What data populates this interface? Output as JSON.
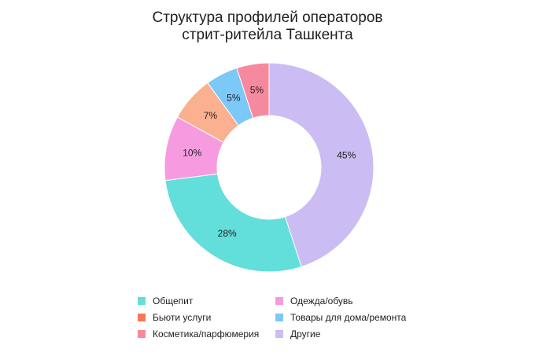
{
  "chart_data": {
    "type": "pie",
    "title_lines": [
      "Структура профилей операторов",
      "стрит-ритейла Ташкента"
    ],
    "categories": [
      "Общепит",
      "Одежда/обувь",
      "Бьюти услуги",
      "Товары для дома/ремонта",
      "Косметика/парфюмерия",
      "Другие"
    ],
    "slices": [
      {
        "name": "Другие",
        "value": 45,
        "label": "45%",
        "color": "#cbbcf3"
      },
      {
        "name": "Общепит",
        "value": 28,
        "label": "28%",
        "color": "#62dedb"
      },
      {
        "name": "Одежда/обувь",
        "value": 10,
        "label": "10%",
        "color": "#f79be0"
      },
      {
        "name": "Бьюти услуги",
        "value": 7,
        "label": "7%",
        "color": "#fbb08f"
      },
      {
        "name": "Товары для дома/ремонта",
        "value": 5,
        "label": "5%",
        "color": "#7cc8f7"
      },
      {
        "name": "Косметика/парфюмерия",
        "value": 5,
        "label": "5%",
        "color": "#f7899f"
      }
    ],
    "legend": {
      "placement": "bottom",
      "items": [
        {
          "label": "Общепит",
          "color": "#62dedb"
        },
        {
          "label": "Одежда/обувь",
          "color": "#f79be0"
        },
        {
          "label": "Бьюти услуги",
          "color": "#f47a52"
        },
        {
          "label": "Товары для дома/ремонта",
          "color": "#7cc8f7"
        },
        {
          "label": "Косметика/парфюмерия",
          "color": "#f7899f"
        },
        {
          "label": "Другие",
          "color": "#cbbcf3"
        }
      ]
    },
    "donut": true
  }
}
